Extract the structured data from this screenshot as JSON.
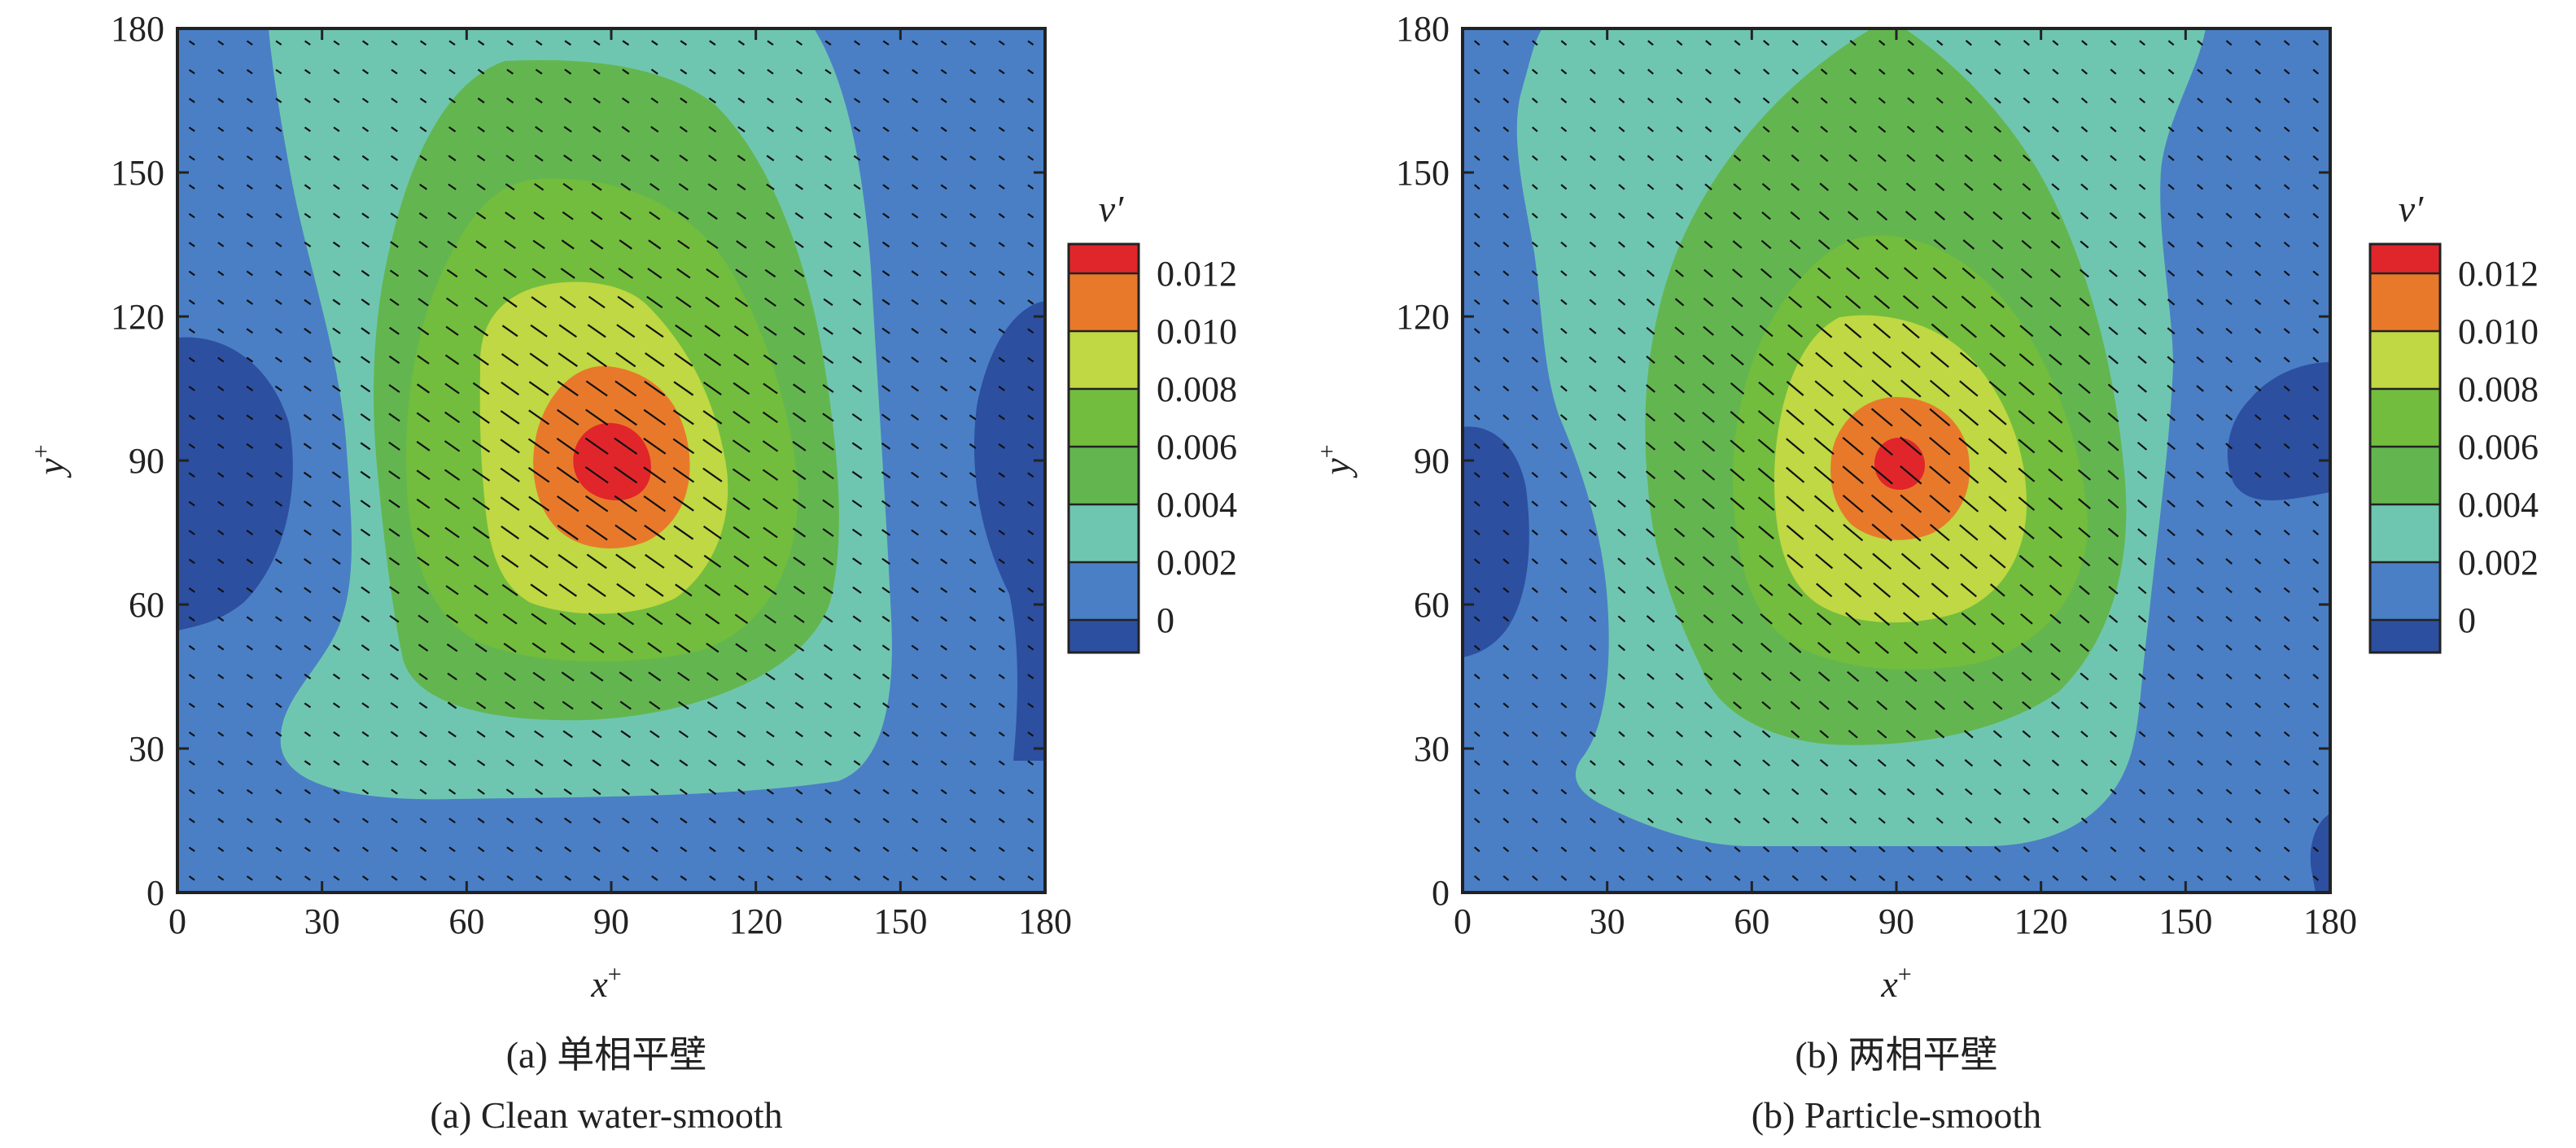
{
  "chart_data": [
    {
      "type": "heatmap",
      "subtype": "filled-contour-with-vectors",
      "caption_cn": "(a) 单相平壁",
      "caption_en": "(a) Clean water-smooth",
      "xlabel": "x",
      "xlabel_sup": "+",
      "ylabel": "y",
      "ylabel_sup": "+",
      "xlim": [
        0,
        180
      ],
      "ylim": [
        0,
        180
      ],
      "xticks": [
        0,
        30,
        60,
        90,
        120,
        150,
        180
      ],
      "yticks": [
        0,
        30,
        60,
        90,
        120,
        150,
        180
      ],
      "colorbar_title": "v′",
      "levels": [
        0,
        0.002,
        0.004,
        0.006,
        0.008,
        0.01,
        0.012
      ],
      "level_labels": [
        "0",
        "0.002",
        "0.004",
        "0.006",
        "0.008",
        "0.010",
        "0.012"
      ],
      "colors": [
        "#2d4fa0",
        "#4a7fc6",
        "#6fc6b0",
        "#63b64f",
        "#72bd3e",
        "#bfd843",
        "#e8792b",
        "#e0262a"
      ],
      "vortex_center": [
        90,
        90
      ],
      "vector_angle_deg": -35
    },
    {
      "type": "heatmap",
      "subtype": "filled-contour-with-vectors",
      "caption_cn": "(b) 两相平壁",
      "caption_en": "(b) Particle-smooth",
      "xlabel": "x",
      "xlabel_sup": "+",
      "ylabel": "y",
      "ylabel_sup": "+",
      "xlim": [
        0,
        180
      ],
      "ylim": [
        0,
        180
      ],
      "xticks": [
        0,
        30,
        60,
        90,
        120,
        150,
        180
      ],
      "yticks": [
        0,
        30,
        60,
        90,
        120,
        150,
        180
      ],
      "colorbar_title": "v′",
      "levels": [
        0,
        0.002,
        0.004,
        0.006,
        0.008,
        0.01,
        0.012
      ],
      "level_labels": [
        "0",
        "0.002",
        "0.004",
        "0.006",
        "0.008",
        "0.010",
        "0.012"
      ],
      "colors": [
        "#2d4fa0",
        "#4a7fc6",
        "#6fc6b0",
        "#63b64f",
        "#72bd3e",
        "#bfd843",
        "#e8792b",
        "#e0262a"
      ],
      "vortex_center": [
        90,
        90
      ],
      "vector_angle_deg": -40
    }
  ]
}
